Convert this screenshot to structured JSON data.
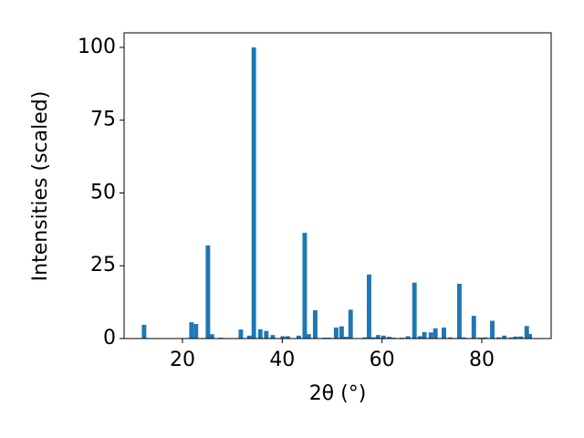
{
  "chart_data": {
    "type": "bar",
    "xlabel": "2θ (°)",
    "ylabel": "Intensities (scaled)",
    "color": "#1f77b4",
    "x": [
      12.3,
      21.8,
      22.7,
      25.1,
      25.9,
      27.7,
      31.7,
      33.4,
      34.3,
      35.6,
      36.8,
      38.1,
      40.1,
      41.1,
      43.3,
      44.5,
      45.3,
      46.6,
      48.4,
      49.3,
      50.8,
      51.9,
      52.8,
      53.7,
      56.5,
      57.4,
      58.3,
      59.2,
      60.3,
      61.4,
      62.3,
      64.0,
      65.2,
      66.5,
      67.6,
      68.5,
      69.8,
      70.7,
      72.4,
      73.7,
      75.5,
      76.4,
      78.4,
      79.6,
      80.6,
      82.1,
      83.4,
      84.5,
      85.9,
      86.8,
      87.8,
      89.0,
      89.6
    ],
    "values": [
      4.7,
      5.6,
      5.0,
      32,
      1.5,
      0.3,
      3.1,
      1,
      100,
      3.2,
      2.6,
      1.2,
      0.8,
      0.8,
      1.0,
      36.3,
      1.5,
      9.7,
      0.3,
      0.3,
      3.8,
      4.2,
      0.6,
      9.9,
      0.4,
      22,
      0.4,
      1.2,
      1.0,
      0.6,
      0.3,
      0.3,
      0.8,
      19.2,
      0.8,
      2.2,
      2.1,
      3.5,
      3.8,
      0.4,
      18.8,
      0.4,
      7.8,
      0.3,
      0.4,
      6.1,
      0.4,
      1.0,
      0.4,
      0.7,
      0.7,
      4.3,
      1.6
    ],
    "xlim": [
      8.3,
      93.9
    ],
    "ylim": [
      0,
      105
    ],
    "xticks": [
      20,
      40,
      60,
      80
    ],
    "yticks": [
      0,
      25,
      50,
      75,
      100
    ]
  }
}
